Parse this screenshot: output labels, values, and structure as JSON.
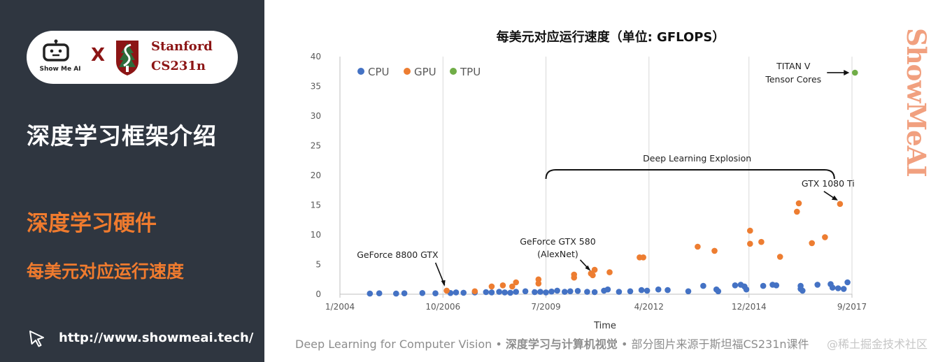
{
  "sidebar": {
    "brand_text": "Show Me AI",
    "cross_mark": "X",
    "stanford_name": "Stanford",
    "stanford_course": "CS231n",
    "section_title": "深度学习框架介绍",
    "topic_title": "深度学习硬件",
    "sub_title": "每美元对应运行速度",
    "site_url": "http://www.showmeai.tech/"
  },
  "watermark": "ShowMeAI",
  "footer": {
    "part1": "Deep Learning for Computer Vision",
    "sep1": " • ",
    "part2": "深度学习与计算机视觉",
    "sep2": " • ",
    "part3": "部分图片来源于斯坦福CS231n课件",
    "overlay": "@稀土掘金技术社区"
  },
  "colors": {
    "panel_bg": "#2f3640",
    "accent_orange": "#f07b2e",
    "stanford_red": "#8c1515",
    "cpu": "#4472c4",
    "gpu": "#ed7d31",
    "tpu": "#70ad47"
  },
  "chart_data": {
    "type": "scatter",
    "title": "每美元对应运行速度（单位: GFLOPS）",
    "xlabel": "Time",
    "ylabel": "",
    "ylim": [
      0,
      40
    ],
    "yticks": [
      0,
      5,
      10,
      15,
      20,
      25,
      30,
      35,
      40
    ],
    "xlim": [
      2004.0,
      2017.67
    ],
    "xticks": [
      {
        "label": "1/2004",
        "value": 2004.0
      },
      {
        "label": "10/2006",
        "value": 2006.75
      },
      {
        "label": "7/2009",
        "value": 2009.5
      },
      {
        "label": "4/2012",
        "value": 2012.25
      },
      {
        "label": "12/2014",
        "value": 2014.92
      },
      {
        "label": "9/2017",
        "value": 2017.67
      }
    ],
    "grid": "vertical",
    "legend_position": "top-left",
    "series": [
      {
        "name": "CPU",
        "color": "#4472c4",
        "points": [
          [
            2004.8,
            0.1
          ],
          [
            2005.05,
            0.15
          ],
          [
            2005.5,
            0.1
          ],
          [
            2005.72,
            0.15
          ],
          [
            2006.2,
            0.2
          ],
          [
            2006.55,
            0.15
          ],
          [
            2006.95,
            0.2
          ],
          [
            2007.1,
            0.3
          ],
          [
            2007.3,
            0.25
          ],
          [
            2007.6,
            0.3
          ],
          [
            2007.9,
            0.35
          ],
          [
            2008.05,
            0.3
          ],
          [
            2008.25,
            0.4
          ],
          [
            2008.4,
            0.3
          ],
          [
            2008.55,
            0.25
          ],
          [
            2008.7,
            0.4
          ],
          [
            2008.95,
            0.5
          ],
          [
            2009.2,
            0.35
          ],
          [
            2009.35,
            0.4
          ],
          [
            2009.5,
            0.3
          ],
          [
            2009.65,
            0.45
          ],
          [
            2009.8,
            0.6
          ],
          [
            2010.0,
            0.4
          ],
          [
            2010.15,
            0.5
          ],
          [
            2010.35,
            0.55
          ],
          [
            2010.6,
            0.4
          ],
          [
            2010.8,
            0.35
          ],
          [
            2011.05,
            0.6
          ],
          [
            2011.15,
            0.8
          ],
          [
            2011.45,
            0.4
          ],
          [
            2011.75,
            0.5
          ],
          [
            2012.05,
            0.7
          ],
          [
            2012.2,
            0.6
          ],
          [
            2012.5,
            0.8
          ],
          [
            2012.75,
            0.7
          ],
          [
            2013.3,
            0.5
          ],
          [
            2013.7,
            1.4
          ],
          [
            2014.05,
            0.8
          ],
          [
            2014.1,
            0.5
          ],
          [
            2014.55,
            1.5
          ],
          [
            2014.7,
            1.6
          ],
          [
            2014.8,
            1.3
          ],
          [
            2014.85,
            0.8
          ],
          [
            2015.3,
            1.4
          ],
          [
            2015.55,
            1.6
          ],
          [
            2015.65,
            1.5
          ],
          [
            2016.3,
            1.4
          ],
          [
            2016.3,
            0.9
          ],
          [
            2016.35,
            0.6
          ],
          [
            2016.75,
            1.6
          ],
          [
            2017.1,
            1.7
          ],
          [
            2017.15,
            1.1
          ],
          [
            2017.3,
            1.0
          ],
          [
            2017.45,
            0.9
          ],
          [
            2017.55,
            2.0
          ]
        ]
      },
      {
        "name": "GPU",
        "color": "#ed7d31",
        "points": [
          [
            2006.85,
            0.6
          ],
          [
            2007.6,
            0.5
          ],
          [
            2008.05,
            1.3
          ],
          [
            2008.35,
            1.5
          ],
          [
            2008.6,
            1.3
          ],
          [
            2008.7,
            2.0
          ],
          [
            2009.3,
            2.5
          ],
          [
            2009.3,
            1.8
          ],
          [
            2010.25,
            3.3
          ],
          [
            2010.25,
            2.8
          ],
          [
            2010.7,
            3.5
          ],
          [
            2010.8,
            4.1
          ],
          [
            2010.75,
            3.2
          ],
          [
            2011.2,
            3.7
          ],
          [
            2012.0,
            6.2
          ],
          [
            2012.1,
            6.2
          ],
          [
            2013.55,
            8.0
          ],
          [
            2014.0,
            7.3
          ],
          [
            2014.95,
            10.7
          ],
          [
            2014.95,
            8.5
          ],
          [
            2015.25,
            8.8
          ],
          [
            2015.75,
            6.3
          ],
          [
            2016.25,
            15.3
          ],
          [
            2016.2,
            13.9
          ],
          [
            2016.6,
            8.6
          ],
          [
            2016.95,
            9.6
          ],
          [
            2017.35,
            15.2
          ]
        ]
      },
      {
        "name": "TPU",
        "color": "#70ad47",
        "points": [
          [
            2017.75,
            37.3
          ]
        ]
      }
    ],
    "annotations": [
      {
        "text": "GeForce 8800 GTX",
        "x": 2006.85,
        "y": 0.6
      },
      {
        "text": "GeForce GTX 580",
        "text2": "(AlexNet)",
        "x": 2010.75,
        "y": 3.2
      },
      {
        "text": "Deep Learning Explosion",
        "x_start": 2009.5,
        "x_end": 2017.2,
        "y": 20
      },
      {
        "text": "GTX 1080 Ti",
        "x": 2017.35,
        "y": 15.2
      },
      {
        "text": "TITAN V",
        "text2": "Tensor Cores",
        "x": 2017.75,
        "y": 37.3
      }
    ]
  }
}
